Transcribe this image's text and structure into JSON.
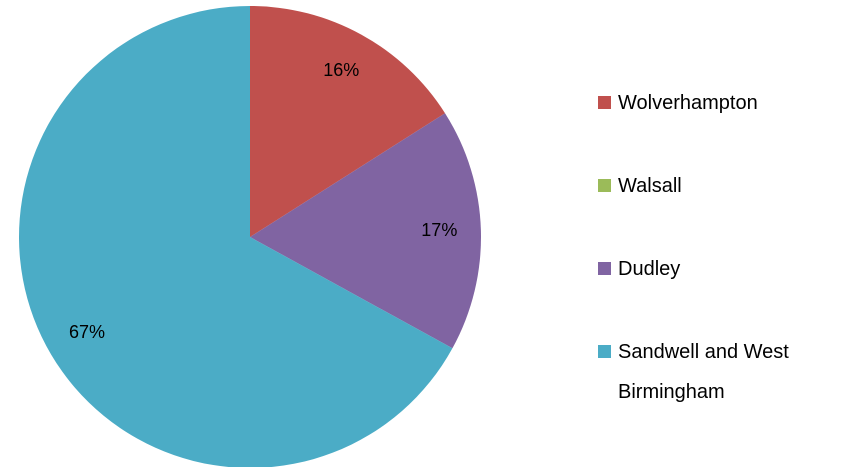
{
  "chart_data": {
    "type": "pie",
    "categories": [
      "Wolverhampton",
      "Walsall",
      "Dudley",
      "Sandwell and West Birmingham"
    ],
    "values": [
      16,
      0,
      17,
      67
    ],
    "value_labels": [
      "16%",
      null,
      "17%",
      "67%"
    ],
    "colors": [
      "#c0504d",
      "#9bbb59",
      "#8064a2",
      "#4bacc6"
    ],
    "legend": "right"
  }
}
